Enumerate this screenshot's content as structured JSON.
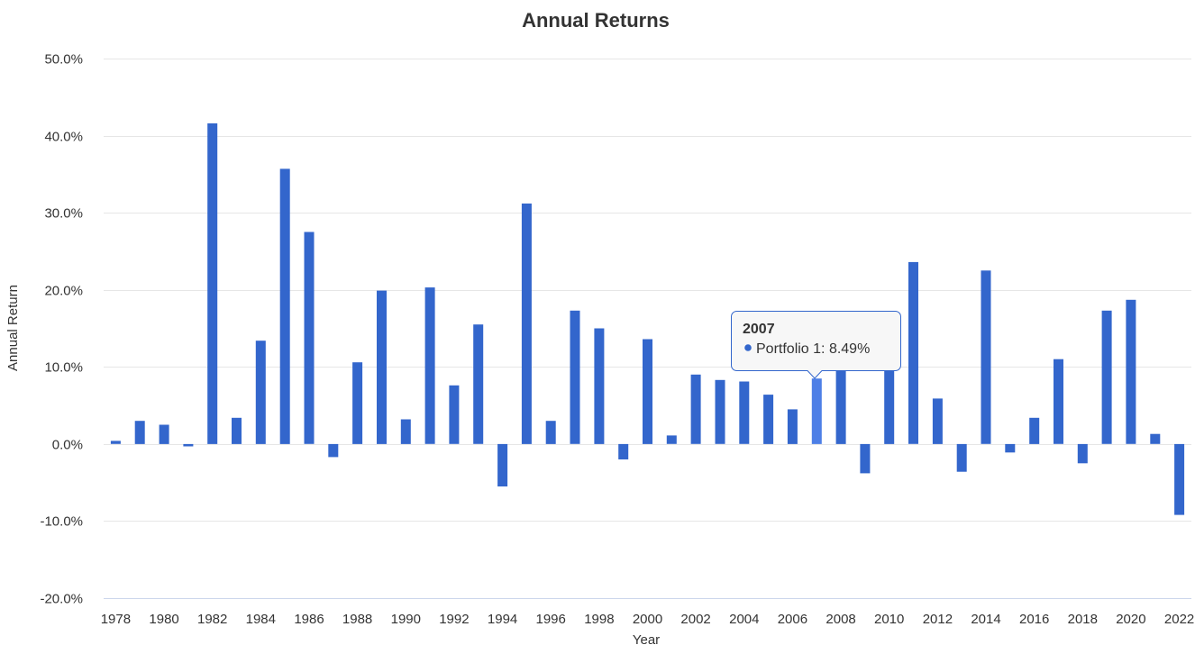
{
  "chart_data": {
    "type": "bar",
    "title": "Annual Returns",
    "xlabel": "Year",
    "ylabel": "Annual Return",
    "ylim": [
      -20,
      50
    ],
    "yticks": [
      -20,
      -10,
      0,
      10,
      20,
      30,
      40,
      50
    ],
    "ytick_labels": [
      "-20.0%",
      "-10.0%",
      "0.0%",
      "10.0%",
      "20.0%",
      "30.0%",
      "40.0%",
      "50.0%"
    ],
    "grid": true,
    "categories": [
      "1978",
      "1979",
      "1980",
      "1981",
      "1982",
      "1983",
      "1984",
      "1985",
      "1986",
      "1987",
      "1988",
      "1989",
      "1990",
      "1991",
      "1992",
      "1993",
      "1994",
      "1995",
      "1996",
      "1997",
      "1998",
      "1999",
      "2000",
      "2001",
      "2002",
      "2003",
      "2004",
      "2005",
      "2006",
      "2007",
      "2008",
      "2009",
      "2010",
      "2011",
      "2012",
      "2013",
      "2014",
      "2015",
      "2016",
      "2017",
      "2018",
      "2019",
      "2020",
      "2021",
      "2022"
    ],
    "xtick_labels": [
      "1978",
      "1980",
      "1982",
      "1984",
      "1986",
      "1988",
      "1990",
      "1992",
      "1994",
      "1996",
      "1998",
      "2000",
      "2002",
      "2004",
      "2006",
      "2008",
      "2010",
      "2012",
      "2014",
      "2016",
      "2018",
      "2020",
      "2022"
    ],
    "series": [
      {
        "name": "Portfolio 1",
        "color": "#3366cc",
        "values": [
          0.4,
          3.0,
          2.5,
          -0.3,
          41.6,
          3.4,
          13.4,
          35.7,
          27.5,
          -1.7,
          10.6,
          19.9,
          3.2,
          20.3,
          7.6,
          15.5,
          -5.5,
          31.2,
          3.0,
          17.3,
          15.0,
          -2.0,
          13.6,
          1.1,
          9.0,
          8.3,
          8.1,
          6.4,
          4.5,
          8.49,
          10.4,
          -3.8,
          10.4,
          23.6,
          5.9,
          -3.6,
          22.5,
          -1.1,
          3.4,
          11.0,
          -2.5,
          17.3,
          18.7,
          1.3,
          -9.2
        ]
      }
    ],
    "highlight_color": "#4d7fe6",
    "tooltip": {
      "category": "2007",
      "series_name": "Portfolio 1",
      "value_label": "8.49%"
    }
  }
}
